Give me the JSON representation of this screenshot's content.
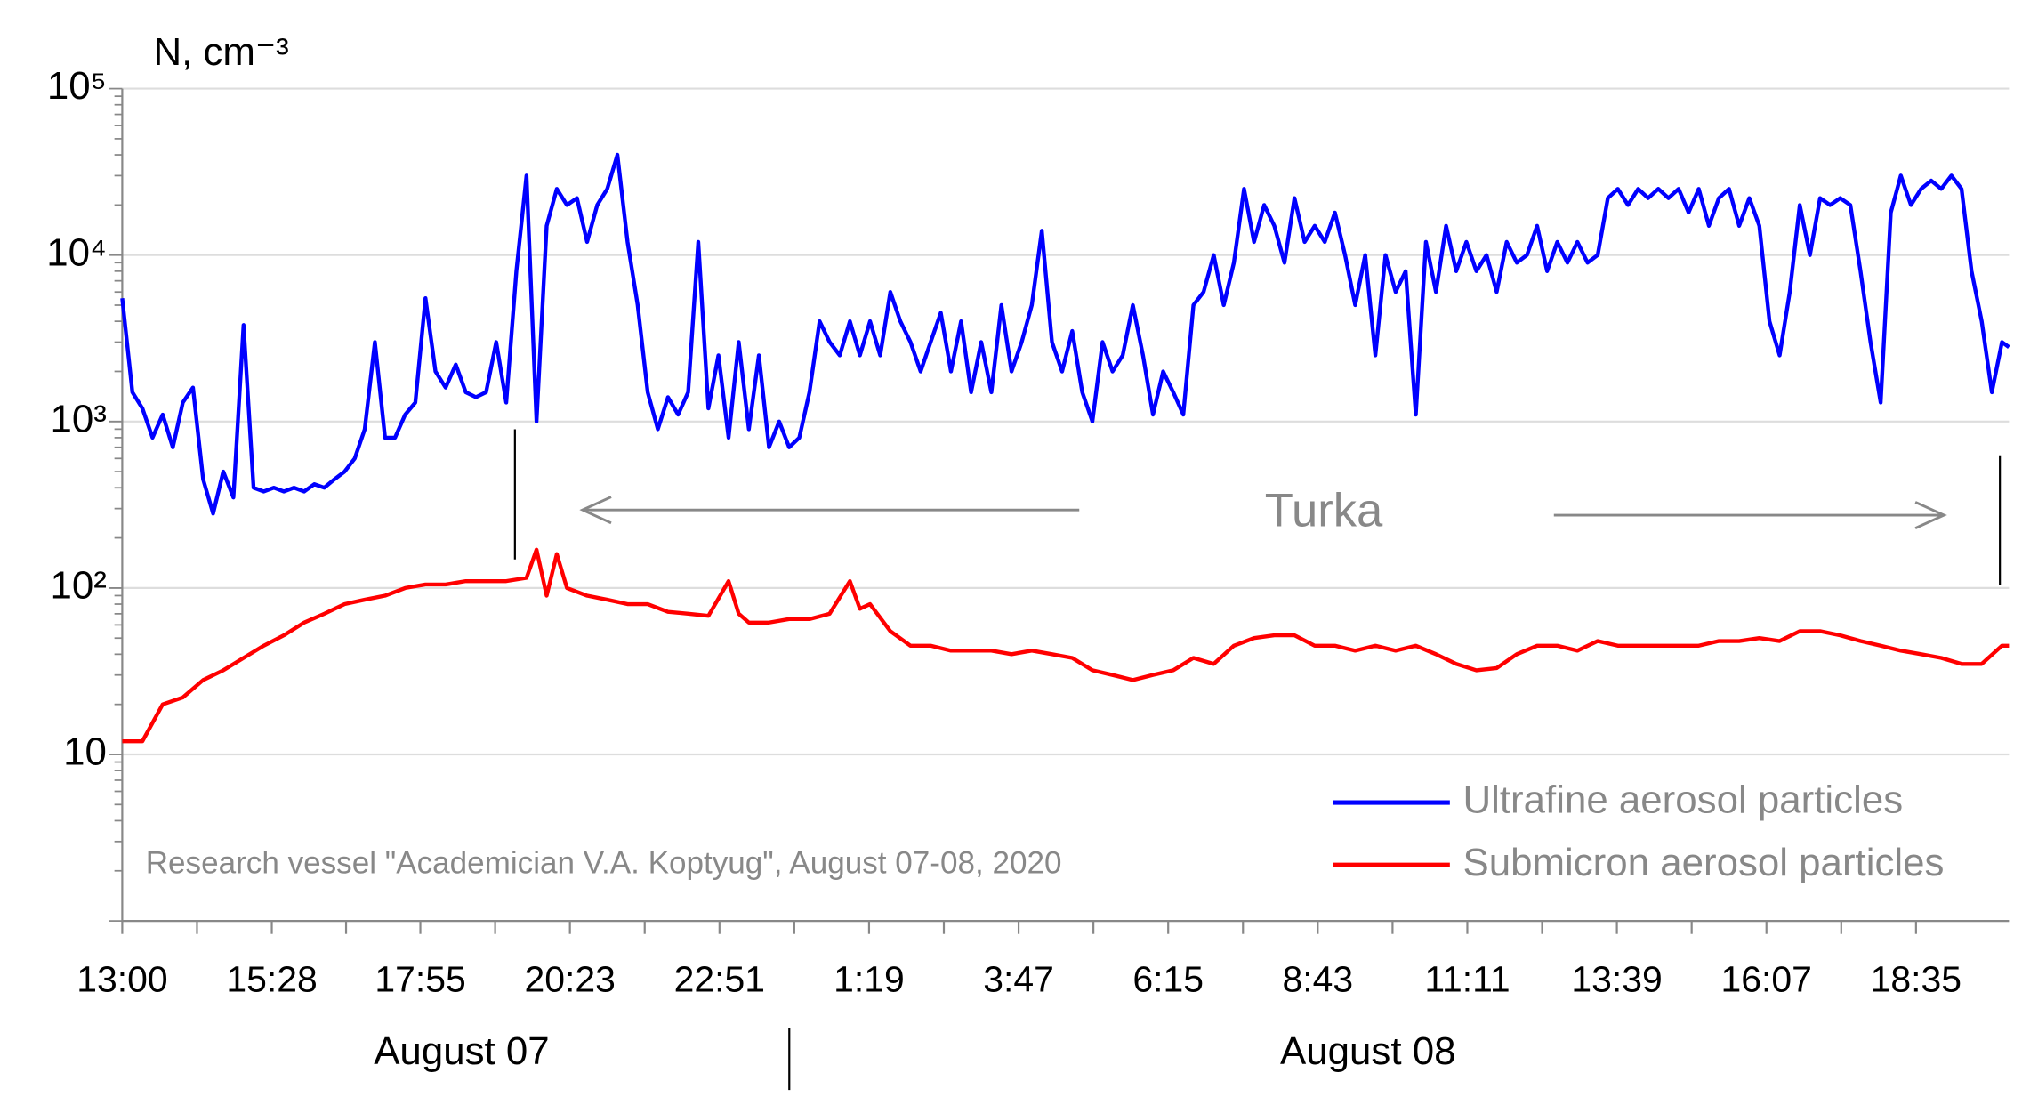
{
  "chart_data": {
    "type": "line",
    "y_label": "N, cm⁻³",
    "annotations": [
      "Turka",
      "Research vessel \"Academician V.A. Koptyug\", August 07-08, 2020"
    ],
    "x_groups": [
      "August 07",
      "August 08"
    ],
    "log_y": true,
    "grid": true,
    "legend": "lower right",
    "xlim": [
      0,
      1867
    ],
    "ylim": [
      1,
      100000
    ],
    "xticks": [
      {
        "value": 0,
        "label": "13:00"
      },
      {
        "value": 148,
        "label": "15:28"
      },
      {
        "value": 295,
        "label": "17:55"
      },
      {
        "value": 443,
        "label": "20:23"
      },
      {
        "value": 591,
        "label": "22:51"
      },
      {
        "value": 739,
        "label": "1:19"
      },
      {
        "value": 887,
        "label": "3:47"
      },
      {
        "value": 1035,
        "label": "6:15"
      },
      {
        "value": 1183,
        "label": "8:43"
      },
      {
        "value": 1331,
        "label": "11:11"
      },
      {
        "value": 1479,
        "label": "13:39"
      },
      {
        "value": 1627,
        "label": "16:07"
      },
      {
        "value": 1775,
        "label": "18:35"
      }
    ],
    "yticks": [
      10,
      {
        "value": 100,
        "label": "10²"
      },
      {
        "value": 1000,
        "label": "10³"
      },
      {
        "value": 10000,
        "label": "10⁴"
      },
      {
        "value": 100000,
        "label": "10⁵"
      }
    ],
    "series": [
      {
        "name": "Ultrafine aerosol particles",
        "color": "#0000ff",
        "x": [
          0,
          10,
          20,
          30,
          40,
          50,
          60,
          70,
          80,
          90,
          100,
          110,
          120,
          130,
          140,
          150,
          160,
          170,
          180,
          190,
          200,
          210,
          220,
          230,
          240,
          250,
          260,
          270,
          280,
          290,
          300,
          310,
          320,
          330,
          340,
          350,
          360,
          370,
          380,
          390,
          400,
          410,
          420,
          430,
          440,
          450,
          460,
          470,
          480,
          490,
          500,
          510,
          520,
          530,
          540,
          550,
          560,
          570,
          580,
          590,
          600,
          610,
          620,
          630,
          640,
          650,
          660,
          670,
          680,
          690,
          700,
          710,
          720,
          730,
          740,
          750,
          760,
          770,
          780,
          790,
          800,
          810,
          820,
          830,
          840,
          850,
          860,
          870,
          880,
          890,
          900,
          910,
          920,
          930,
          940,
          950,
          960,
          970,
          980,
          990,
          1000,
          1010,
          1020,
          1030,
          1040,
          1050,
          1060,
          1070,
          1080,
          1090,
          1100,
          1110,
          1120,
          1130,
          1140,
          1150,
          1160,
          1170,
          1180,
          1190,
          1200,
          1210,
          1220,
          1230,
          1240,
          1250,
          1260,
          1270,
          1280,
          1290,
          1300,
          1310,
          1320,
          1330,
          1340,
          1350,
          1360,
          1370,
          1380,
          1390,
          1400,
          1410,
          1420,
          1430,
          1440,
          1450,
          1460,
          1470,
          1480,
          1490,
          1500,
          1510,
          1520,
          1530,
          1540,
          1550,
          1560,
          1570,
          1580,
          1590,
          1600,
          1610,
          1620,
          1630,
          1640,
          1650,
          1660,
          1670,
          1680,
          1690,
          1700,
          1710,
          1720,
          1730,
          1740,
          1750,
          1760,
          1770,
          1780,
          1790,
          1800,
          1810,
          1820,
          1830,
          1840,
          1850,
          1860,
          1867
        ],
        "values": [
          5500,
          1500,
          1200,
          800,
          1100,
          700,
          1300,
          1600,
          450,
          280,
          500,
          350,
          3800,
          400,
          380,
          400,
          380,
          400,
          380,
          420,
          400,
          450,
          500,
          600,
          900,
          3000,
          800,
          800,
          1100,
          1300,
          5500,
          2000,
          1600,
          2200,
          1500,
          1400,
          1500,
          3000,
          1300,
          8000,
          30000,
          1000,
          15000,
          25000,
          20000,
          22000,
          12000,
          20000,
          25000,
          40000,
          12000,
          5000,
          1500,
          900,
          1400,
          1100,
          1500,
          12000,
          1200,
          2500,
          800,
          3000,
          900,
          2500,
          700,
          1000,
          700,
          800,
          1500,
          4000,
          3000,
          2500,
          4000,
          2500,
          4000,
          2500,
          6000,
          4000,
          3000,
          2000,
          3000,
          4500,
          2000,
          4000,
          1500,
          3000,
          1500,
          5000,
          2000,
          3000,
          5000,
          14000,
          3000,
          2000,
          3500,
          1500,
          1000,
          3000,
          2000,
          2500,
          5000,
          2500,
          1100,
          2000,
          1500,
          1100,
          5000,
          6000,
          10000,
          5000,
          9000,
          25000,
          12000,
          20000,
          15000,
          9000,
          22000,
          12000,
          15000,
          12000,
          18000,
          10000,
          5000,
          10000,
          2500,
          10000,
          6000,
          8000,
          1100,
          12000,
          6000,
          15000,
          8000,
          12000,
          8000,
          10000,
          6000,
          12000,
          9000,
          10000,
          15000,
          8000,
          12000,
          9000,
          12000,
          9000,
          10000,
          22000,
          25000,
          20000,
          25000,
          22000,
          25000,
          22000,
          25000,
          18000,
          25000,
          15000,
          22000,
          25000,
          15000,
          22000,
          15000,
          4000,
          2500,
          6000,
          20000,
          10000,
          22000,
          20000,
          22000,
          20000,
          8000,
          3000,
          1300,
          18000,
          30000,
          20000,
          25000,
          28000,
          25000,
          30000,
          25000,
          8000,
          4000,
          1500,
          3000,
          2800
        ]
      },
      {
        "name": "Submicron aerosol particles",
        "color": "#ff0000",
        "x": [
          0,
          20,
          40,
          60,
          80,
          100,
          120,
          140,
          160,
          180,
          200,
          220,
          240,
          260,
          280,
          300,
          320,
          340,
          360,
          380,
          400,
          410,
          420,
          430,
          440,
          460,
          480,
          500,
          520,
          540,
          560,
          580,
          600,
          610,
          620,
          640,
          660,
          680,
          700,
          720,
          730,
          740,
          760,
          780,
          800,
          820,
          840,
          860,
          880,
          900,
          920,
          940,
          960,
          980,
          1000,
          1020,
          1040,
          1060,
          1080,
          1100,
          1120,
          1140,
          1160,
          1180,
          1200,
          1220,
          1240,
          1260,
          1280,
          1300,
          1320,
          1340,
          1360,
          1380,
          1400,
          1420,
          1440,
          1460,
          1480,
          1500,
          1520,
          1540,
          1560,
          1580,
          1600,
          1620,
          1640,
          1660,
          1680,
          1700,
          1720,
          1740,
          1760,
          1780,
          1800,
          1820,
          1840,
          1860,
          1867
        ],
        "values": [
          12,
          12,
          20,
          22,
          28,
          32,
          38,
          45,
          52,
          62,
          70,
          80,
          85,
          90,
          100,
          105,
          105,
          110,
          110,
          110,
          115,
          170,
          90,
          160,
          100,
          90,
          85,
          80,
          80,
          72,
          70,
          68,
          110,
          70,
          62,
          62,
          65,
          65,
          70,
          110,
          75,
          80,
          55,
          45,
          45,
          42,
          42,
          42,
          40,
          42,
          40,
          38,
          32,
          30,
          28,
          30,
          32,
          38,
          35,
          45,
          50,
          52,
          52,
          45,
          45,
          42,
          45,
          42,
          45,
          40,
          35,
          32,
          33,
          40,
          45,
          45,
          42,
          48,
          45,
          45,
          45,
          45,
          45,
          48,
          48,
          50,
          48,
          55,
          55,
          52,
          48,
          45,
          42,
          40,
          38,
          35,
          35,
          45,
          45
        ]
      }
    ]
  }
}
